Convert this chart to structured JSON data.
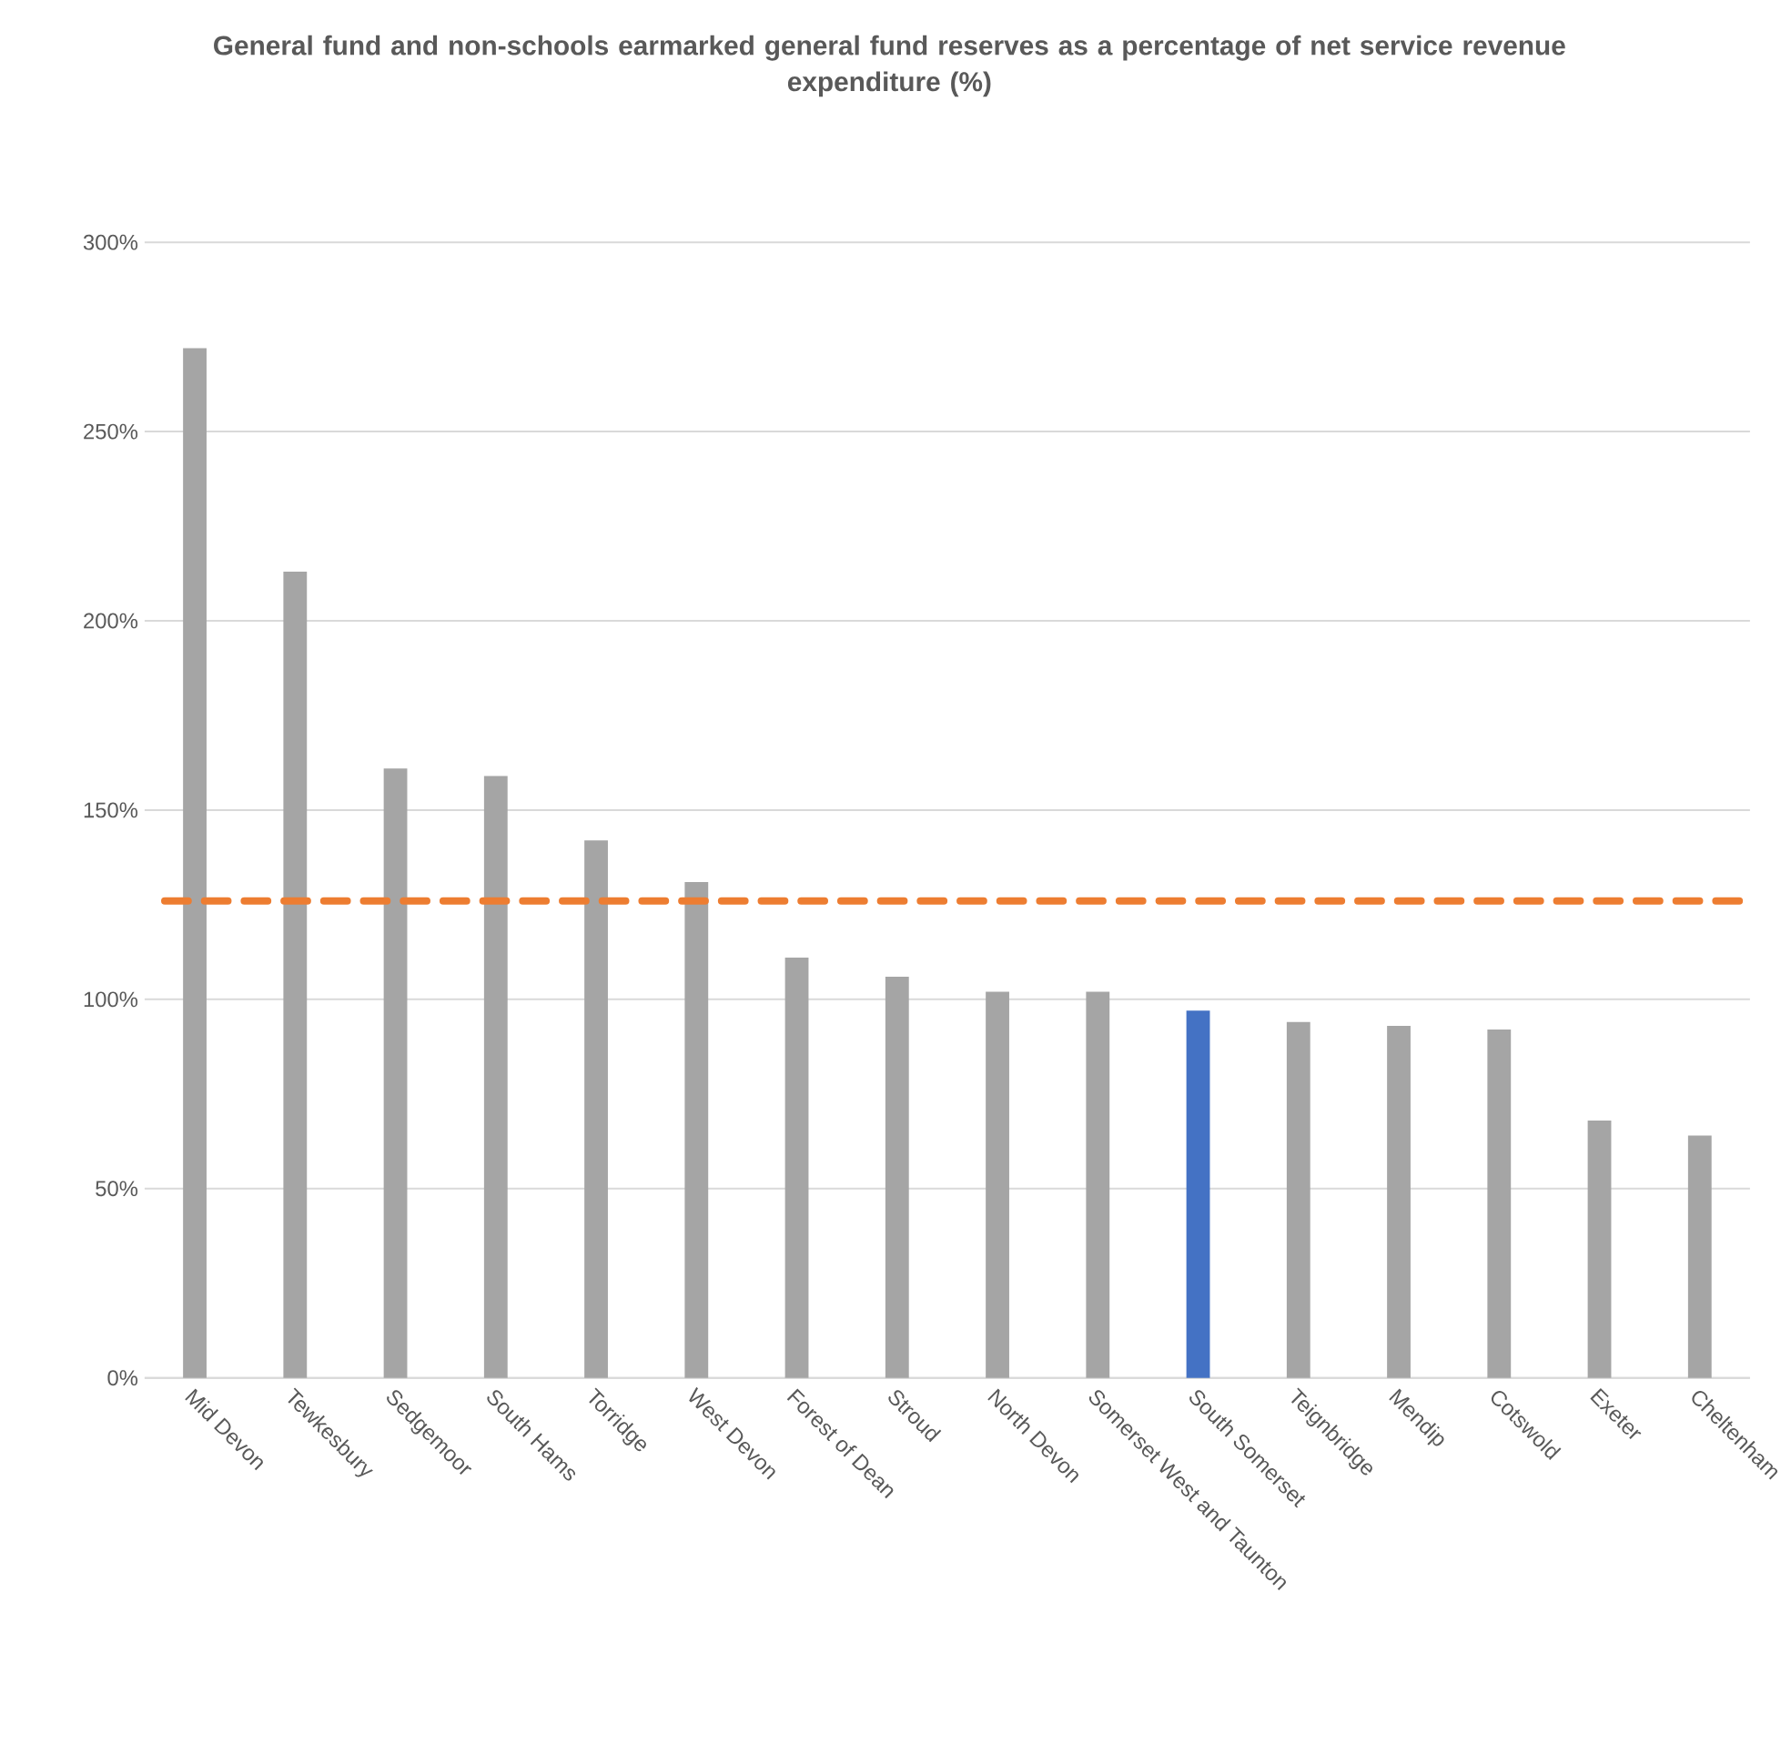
{
  "chart_data": {
    "type": "bar",
    "title": "General fund and non-schools earmarked general fund reserves as a percentage of net service revenue expenditure (%)",
    "categories": [
      "Mid Devon",
      "Tewkesbury",
      "Sedgemoor",
      "South Hams",
      "Torridge",
      "West Devon",
      "Forest of Dean",
      "Stroud",
      "North Devon",
      "Somerset West and Taunton",
      "South Somerset",
      "Teignbridge",
      "Mendip",
      "Cotswold",
      "Exeter",
      "Cheltenham"
    ],
    "values": [
      272,
      213,
      161,
      159,
      142,
      131,
      111,
      106,
      102,
      102,
      97,
      94,
      93,
      92,
      68,
      64
    ],
    "colors": [
      "#a5a5a5",
      "#a5a5a5",
      "#a5a5a5",
      "#a5a5a5",
      "#a5a5a5",
      "#a5a5a5",
      "#a5a5a5",
      "#a5a5a5",
      "#a5a5a5",
      "#a5a5a5",
      "#4472c4",
      "#a5a5a5",
      "#a5a5a5",
      "#a5a5a5",
      "#a5a5a5",
      "#a5a5a5"
    ],
    "ylim": [
      0,
      300
    ],
    "yticks": [
      {
        "value": 0,
        "label": "0%"
      },
      {
        "value": 50,
        "label": "50%"
      },
      {
        "value": 100,
        "label": "100%"
      },
      {
        "value": 150,
        "label": "150%"
      },
      {
        "value": 200,
        "label": "200%"
      },
      {
        "value": 250,
        "label": "250%"
      },
      {
        "value": 300,
        "label": "300%"
      }
    ],
    "grid": "y",
    "ref_lines": [
      {
        "axis": "y",
        "value": 126,
        "color": "#ed7d31",
        "line_style": "dashed"
      }
    ]
  }
}
